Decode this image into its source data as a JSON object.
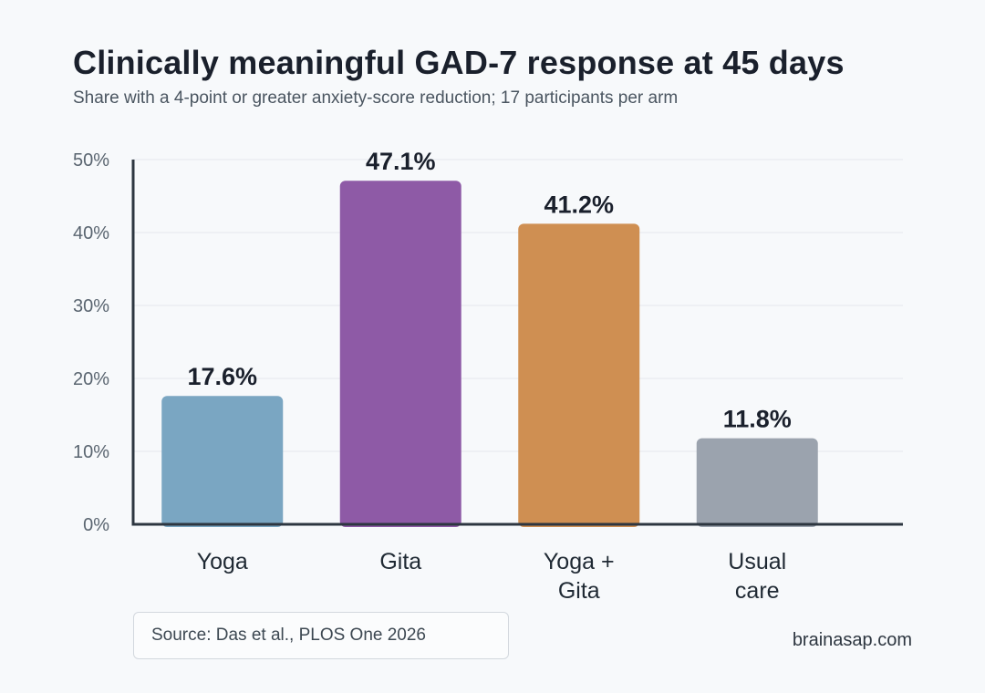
{
  "title": "Clinically meaningful GAD-7 response at 45 days",
  "subtitle": "Share with a 4-point or greater anxiety-score reduction; 17 participants per arm",
  "source": "Source: Das et al., PLOS One 2026",
  "brand": "brainasap.com",
  "colors": {
    "background": "#f7f9fb",
    "axis": "#2d3640",
    "grid": "#e4e8ec",
    "tick_text": "#5a6570",
    "label_text": "#1f2933"
  },
  "chart_data": {
    "type": "bar",
    "categories": [
      [
        "Yoga"
      ],
      [
        "Gita"
      ],
      [
        "Yoga +",
        "Gita"
      ],
      [
        "Usual",
        "care"
      ]
    ],
    "values": [
      17.6,
      47.1,
      41.2,
      11.8
    ],
    "value_labels": [
      "17.6%",
      "47.1%",
      "41.2%",
      "11.8%"
    ],
    "bar_colors": [
      "#7aa6c2",
      "#8e5aa6",
      "#cf8f52",
      "#9ba3ae"
    ],
    "ylim": [
      0,
      50
    ],
    "yticks": [
      0,
      10,
      20,
      30,
      40,
      50
    ],
    "ytick_labels": [
      "0%",
      "10%",
      "20%",
      "30%",
      "40%",
      "50%"
    ],
    "grid": true,
    "legend": "none",
    "xlabel": "",
    "ylabel": ""
  }
}
